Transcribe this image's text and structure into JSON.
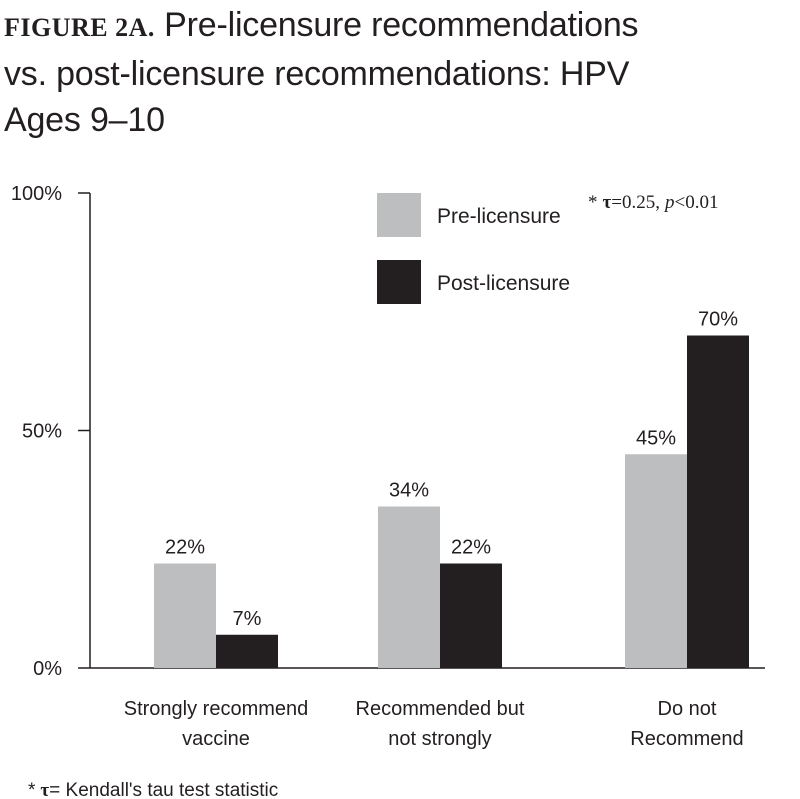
{
  "title": {
    "figure_label": "FIGURE 2A.",
    "line1": "Pre-licensure recommendations",
    "line2": "vs. post-licensure recommendations: HPV",
    "line3": "Ages 9–10"
  },
  "annotation": {
    "star": "*",
    "tau": "τ",
    "eq_value": "=0.25,",
    "p": "p",
    "p_value": "<0.01"
  },
  "footnote": {
    "star": "*",
    "tau": "τ",
    "text": "= Kendall's tau test statistic"
  },
  "colors": {
    "pre": "#bcbec0",
    "post": "#231f20",
    "axis": "#231f20"
  },
  "chart_data": {
    "type": "bar",
    "categories": [
      [
        "Strongly recommend",
        "vaccine"
      ],
      [
        "Recommended but",
        "not strongly"
      ],
      [
        "Do not",
        "Recommend"
      ]
    ],
    "series": [
      {
        "name": "Pre-licensure",
        "values": [
          22,
          34,
          45
        ],
        "labels": [
          "22%",
          "34%",
          "45%"
        ]
      },
      {
        "name": "Post-licensure",
        "values": [
          7,
          22,
          70
        ],
        "labels": [
          "7%",
          "22%",
          "70%"
        ]
      }
    ],
    "yticks": [
      "0%",
      "50%",
      "100%"
    ],
    "ytick_values": [
      0,
      50,
      100
    ],
    "ylim": [
      0,
      100
    ],
    "legend_position": "top-center",
    "grid": false
  }
}
